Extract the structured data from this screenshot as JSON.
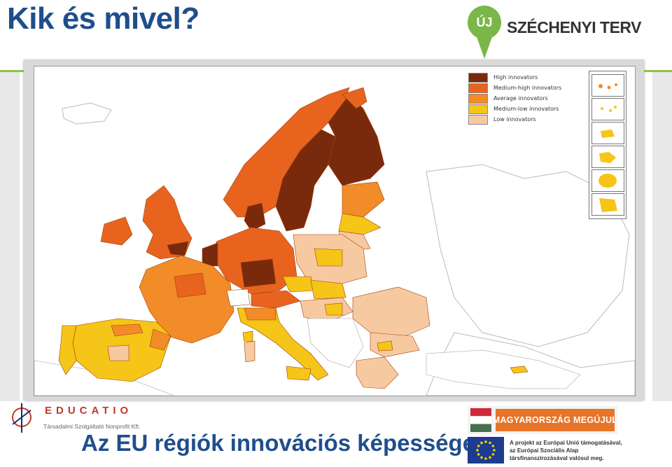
{
  "slide": {
    "title": "Kik és mivel?",
    "subtitle": "Az EU régiók innovációs képessége"
  },
  "logos": {
    "szechenyi_uj": "ÚJ",
    "szechenyi_text": "SZÉCHENYI TERV",
    "educatio_name": "EDUCATIO",
    "educatio_sub": "Társadalmi Szolgáltató Nonprofit Kft.",
    "magyarorszag": "MAGYARORSZÁG MEGÚJUL",
    "eu_line1": "A projekt az Európai Unió támogatásával,",
    "eu_line2": "az Európai Szociális Alap",
    "eu_line3": "társfinanszírozásával valósul meg."
  },
  "map": {
    "legend": [
      {
        "label": "High innovators",
        "color": "#7a2a0c"
      },
      {
        "label": "Medium-high innovators",
        "color": "#e8641e"
      },
      {
        "label": "Average innovators",
        "color": "#f28c28"
      },
      {
        "label": "Medium-low innovators",
        "color": "#f5c518"
      },
      {
        "label": "Low innovators",
        "color": "#f7c9a0"
      }
    ]
  },
  "colors": {
    "title_blue": "#1f4e8c",
    "accent_green": "#8dc63f",
    "high": "#7a2a0c",
    "medium_high": "#e8641e",
    "average": "#f28c28",
    "medium_low": "#f5c518",
    "low": "#f7c9a0"
  }
}
